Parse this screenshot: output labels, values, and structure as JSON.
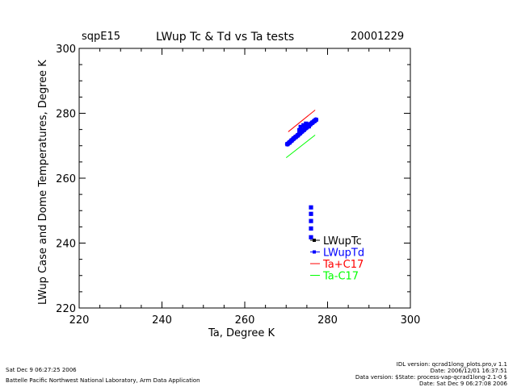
{
  "header": {
    "site": "sqpE15",
    "title": "LWup Tc & Td vs Ta tests",
    "date": "20001229"
  },
  "footer": {
    "left_line1": "Sat Dec  9 06:27:25 2006",
    "left_line2": "Battelle Pacific Northwest National Laboratory, Arm Data Application",
    "right_line1": "IDL version: qcrad1long_plots.pro,v 1.1",
    "right_line2": "Date: 2006/12/01 16:37:51",
    "right_line3": "Data version: $State: process-vap-qcrad1long-2.1-0 $",
    "right_line4": "Date: Sat Dec  9 06:27:08 2006"
  },
  "chart_data": {
    "type": "scatter",
    "title": "LWup Tc & Td vs Ta tests",
    "xlabel": "Ta, Degree K",
    "ylabel": "LWup Case and Dome Temperatures, Degree K",
    "xlim": [
      220,
      300
    ],
    "ylim": [
      220,
      300
    ],
    "xticks": [
      "220",
      "240",
      "260",
      "280",
      "300"
    ],
    "yticks": [
      "220",
      "240",
      "260",
      "280",
      "300"
    ],
    "legend_position": "lower-right",
    "series": [
      {
        "name": "LWupTc",
        "color": "#000000",
        "mode": "markers",
        "x": [
          270.5,
          271.5,
          272.5,
          273.5,
          274.5,
          275.5,
          276.5,
          277.0
        ],
        "y": [
          270.8,
          271.8,
          273.0,
          274.0,
          275.2,
          276.2,
          277.2,
          277.8
        ]
      },
      {
        "name": "LWupTd",
        "color": "#0000ff",
        "mode": "markers",
        "x": [
          270.3,
          270.8,
          271.3,
          271.8,
          272.3,
          272.8,
          273.3,
          273.8,
          274.3,
          274.8,
          275.3,
          275.8,
          276.3,
          276.8,
          277.2,
          273.5,
          274.2,
          274.8,
          275.5,
          273.2,
          276.0,
          276.0,
          276.0,
          276.0,
          276.0
        ],
        "y": [
          270.5,
          271.0,
          271.6,
          272.2,
          272.7,
          273.2,
          273.8,
          274.4,
          274.9,
          275.5,
          276.0,
          276.6,
          277.1,
          277.6,
          278.0,
          275.8,
          276.3,
          276.8,
          276.0,
          274.8,
          251.0,
          249.0,
          246.8,
          244.5,
          241.8
        ]
      },
      {
        "name": "Ta+C17",
        "color": "#ff0000",
        "mode": "line",
        "x": [
          270.5,
          277.0
        ],
        "y": [
          274.3,
          281.0
        ]
      },
      {
        "name": "Ta-C17",
        "color": "#00ff00",
        "mode": "line",
        "x": [
          270.0,
          277.0
        ],
        "y": [
          266.3,
          273.3
        ]
      }
    ]
  }
}
